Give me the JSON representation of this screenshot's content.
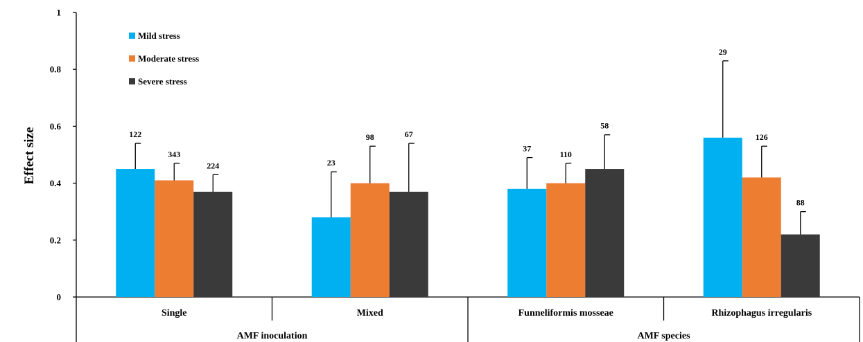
{
  "chart_data": {
    "type": "bar",
    "title": "",
    "xlabel": "",
    "ylabel": "Effect size",
    "ylim": [
      0,
      1
    ],
    "yticks": [
      "0",
      "0.2",
      "0.4",
      "0.6",
      "0.8",
      "1"
    ],
    "grid": false,
    "legend_position": "top-left",
    "categories": [
      "Single",
      "Mixed",
      "Funneliformis mosseae",
      "Rhizophagus irregularis"
    ],
    "groups": [
      {
        "label": "AMF inoculation",
        "categories": [
          "Single",
          "Mixed"
        ]
      },
      {
        "label": "AMF species",
        "categories": [
          "Funneliformis mosseae",
          "Rhizophagus irregularis"
        ]
      }
    ],
    "series": [
      {
        "name": "Mild stress",
        "color": "#00b0f0",
        "values": [
          0.45,
          0.28,
          0.38,
          0.56
        ],
        "error_upper": [
          0.54,
          0.44,
          0.49,
          0.83
        ],
        "sample_sizes": [
          "122",
          "23",
          "37",
          "29"
        ]
      },
      {
        "name": "Moderate stress",
        "color": "#ed7d31",
        "values": [
          0.41,
          0.4,
          0.4,
          0.42
        ],
        "error_upper": [
          0.47,
          0.53,
          0.47,
          0.53
        ],
        "sample_sizes": [
          "343",
          "98",
          "110",
          "126"
        ]
      },
      {
        "name": "Severe stress",
        "color": "#3a3a3a",
        "values": [
          0.37,
          0.37,
          0.45,
          0.22
        ],
        "error_upper": [
          0.43,
          0.54,
          0.57,
          0.3
        ],
        "sample_sizes": [
          "224",
          "67",
          "58",
          "88"
        ]
      }
    ]
  }
}
